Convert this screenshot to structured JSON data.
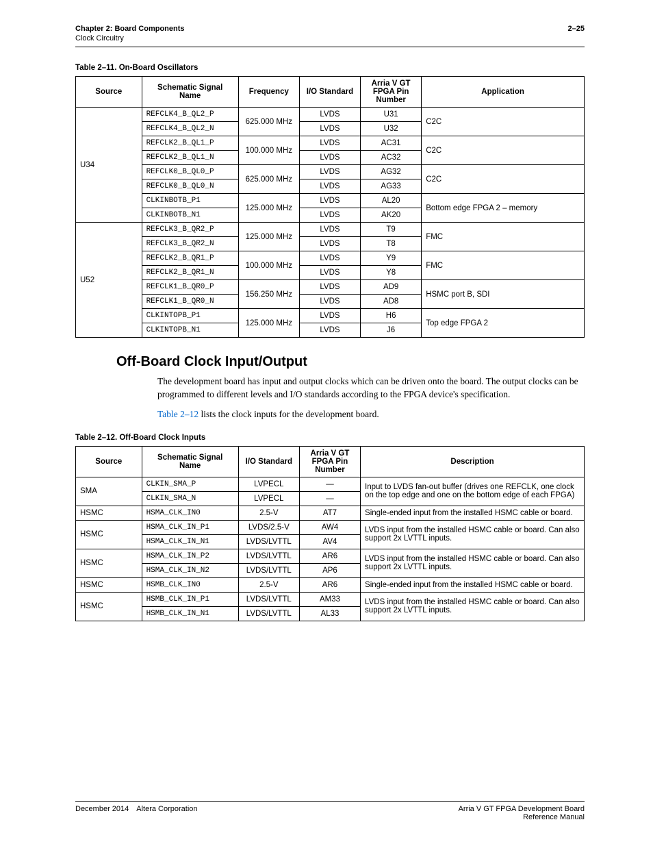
{
  "header": {
    "chapter": "Chapter 2: Board Components",
    "page_num": "2–25",
    "section": "Clock Circuitry"
  },
  "table11": {
    "caption": "Table 2–11. On-Board Oscillators",
    "headers": [
      "Source",
      "Schematic Signal Name",
      "Frequency",
      "I/O Standard",
      "Arria V GT FPGA Pin Number",
      "Application"
    ],
    "col_widths": [
      "13%",
      "19%",
      "12%",
      "12%",
      "12%",
      "32%"
    ],
    "groups": [
      {
        "source": "U34",
        "pairs": [
          {
            "freq": "625.000 MHz",
            "app": "C2C",
            "rows": [
              {
                "sig": "REFCLK4_B_QL2_P",
                "io": "LVDS",
                "pin": "U31"
              },
              {
                "sig": "REFCLK4_B_QL2_N",
                "io": "LVDS",
                "pin": "U32"
              }
            ]
          },
          {
            "freq": "100.000 MHz",
            "app": "C2C",
            "rows": [
              {
                "sig": "REFCLK2_B_QL1_P",
                "io": "LVDS",
                "pin": "AC31"
              },
              {
                "sig": "REFCLK2_B_QL1_N",
                "io": "LVDS",
                "pin": "AC32"
              }
            ]
          },
          {
            "freq": "625.000 MHz",
            "app": "C2C",
            "rows": [
              {
                "sig": "REFCLK0_B_QL0_P",
                "io": "LVDS",
                "pin": "AG32"
              },
              {
                "sig": "REFCLK0_B_QL0_N",
                "io": "LVDS",
                "pin": "AG33"
              }
            ]
          },
          {
            "freq": "125.000 MHz",
            "app": "Bottom edge FPGA 2 – memory",
            "rows": [
              {
                "sig": "CLKINBOTB_P1",
                "io": "LVDS",
                "pin": "AL20"
              },
              {
                "sig": "CLKINBOTB_N1",
                "io": "LVDS",
                "pin": "AK20"
              }
            ]
          }
        ]
      },
      {
        "source": "U52",
        "pairs": [
          {
            "freq": "125.000 MHz",
            "app": "FMC",
            "rows": [
              {
                "sig": "REFCLK3_B_QR2_P",
                "io": "LVDS",
                "pin": "T9"
              },
              {
                "sig": "REFCLK3_B_QR2_N",
                "io": "LVDS",
                "pin": "T8"
              }
            ]
          },
          {
            "freq": "100.000 MHz",
            "app": "FMC",
            "rows": [
              {
                "sig": "REFCLK2_B_QR1_P",
                "io": "LVDS",
                "pin": "Y9"
              },
              {
                "sig": "REFCLK2_B_QR1_N",
                "io": "LVDS",
                "pin": "Y8"
              }
            ]
          },
          {
            "freq": "156.250 MHz",
            "app": "HSMC port B, SDI",
            "rows": [
              {
                "sig": "REFCLK1_B_QR0_P",
                "io": "LVDS",
                "pin": "AD9"
              },
              {
                "sig": "REFCLK1_B_QR0_N",
                "io": "LVDS",
                "pin": "AD8"
              }
            ]
          },
          {
            "freq": "125.000 MHz",
            "app": "Top edge FPGA 2",
            "rows": [
              {
                "sig": "CLKINTOPB_P1",
                "io": "LVDS",
                "pin": "H6"
              },
              {
                "sig": "CLKINTOPB_N1",
                "io": "LVDS",
                "pin": "J6"
              }
            ]
          }
        ]
      }
    ]
  },
  "section2": {
    "heading": "Off-Board Clock Input/Output",
    "para1": "The development board has input and output clocks which can be driven onto the board. The output clocks can be programmed to different levels and I/O standards according to the FPGA device's specification.",
    "para2_link": "Table 2–12",
    "para2_rest": "  lists the clock inputs for the development board."
  },
  "table12": {
    "caption": "Table 2–12. Off-Board Clock Inputs",
    "headers": [
      "Source",
      "Schematic Signal Name",
      "I/O Standard",
      "Arria V GT FPGA Pin Number",
      "Description"
    ],
    "col_widths": [
      "13%",
      "19%",
      "12%",
      "12%",
      "44%"
    ],
    "groups": [
      {
        "source": "SMA",
        "desc": "Input to LVDS fan-out buffer (drives one REFCLK, one clock on the top edge and one on the bottom edge of each FPGA)",
        "rows": [
          {
            "sig": "CLKIN_SMA_P",
            "io": "LVPECL",
            "pin": "—"
          },
          {
            "sig": "CLKIN_SMA_N",
            "io": "LVPECL",
            "pin": "—"
          }
        ]
      },
      {
        "source": "HSMC",
        "desc": "Single-ended input from the installed HSMC cable or board.",
        "rows": [
          {
            "sig": "HSMA_CLK_IN0",
            "io": "2.5-V",
            "pin": "AT7"
          }
        ]
      },
      {
        "source": "HSMC",
        "desc": "LVDS input from the installed HSMC cable or board. Can also support 2x LVTTL inputs.",
        "rows": [
          {
            "sig": "HSMA_CLK_IN_P1",
            "io": "LVDS/2.5-V",
            "pin": "AW4"
          },
          {
            "sig": "HSMA_CLK_IN_N1",
            "io": "LVDS/LVTTL",
            "pin": "AV4"
          }
        ]
      },
      {
        "source": "HSMC",
        "desc": "LVDS input from the installed HSMC cable or board. Can also support 2x LVTTL inputs.",
        "rows": [
          {
            "sig": "HSMA_CLK_IN_P2",
            "io": "LVDS/LVTTL",
            "pin": "AR6"
          },
          {
            "sig": "HSMA_CLK_IN_N2",
            "io": "LVDS/LVTTL",
            "pin": "AP6"
          }
        ]
      },
      {
        "source": "HSMC",
        "desc": "Single-ended input from the installed HSMC cable or board.",
        "rows": [
          {
            "sig": "HSMB_CLK_IN0",
            "io": "2.5-V",
            "pin": "AR6"
          }
        ]
      },
      {
        "source": "HSMC",
        "desc": "LVDS input from the installed HSMC cable or board. Can also support 2x LVTTL inputs.",
        "rows": [
          {
            "sig": "HSMB_CLK_IN_P1",
            "io": "LVDS/LVTTL",
            "pin": "AM33"
          },
          {
            "sig": "HSMB_CLK_IN_N1",
            "io": "LVDS/LVTTL",
            "pin": "AL33"
          }
        ]
      }
    ]
  },
  "footer": {
    "left": "December 2014 Altera Corporation",
    "right1": "Arria V GT FPGA Development Board",
    "right2": "Reference Manual"
  }
}
